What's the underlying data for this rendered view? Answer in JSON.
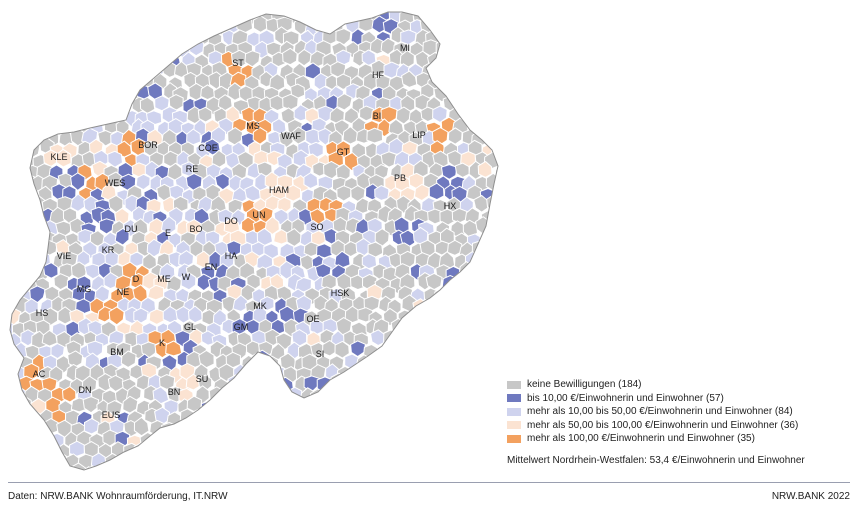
{
  "colors": {
    "none": "#c7c7c7",
    "low": "#6f79bf",
    "mid": "#cfd3ee",
    "high": "#fbe3d2",
    "top": "#f3a15f",
    "border": "#ffffff"
  },
  "legend": {
    "items": [
      {
        "label": "keine Bewilligungen (184)",
        "color_key": "none"
      },
      {
        "label": "bis 10,00 €/Einwohnerin und Einwohner (57)",
        "color_key": "low"
      },
      {
        "label": "mehr als 10,00 bis 50,00 €/Einwohnerin und Einwohner (84)",
        "color_key": "mid"
      },
      {
        "label": "mehr als 50,00 bis 100,00 €/Einwohnerin und Einwohner  (36)",
        "color_key": "high"
      },
      {
        "label": "mehr als 100,00 €/Einwohnerin und Einwohner (35)",
        "color_key": "top"
      }
    ]
  },
  "mean_text": "Mittelwert Nordrhein-Westfalen: 53,4 €/Einwohnerin und Einwohner",
  "footer": {
    "source": "Daten: NRW.BANK Wohnraumförderung, IT.NRW",
    "copyright": "NRW.BANK 2022"
  },
  "district_labels": [
    "MI",
    "HF",
    "ST",
    "BI",
    "MS",
    "LIP",
    "WAF",
    "GT",
    "KLE",
    "BOR",
    "COE",
    "PB",
    "RE",
    "WES",
    "HAM",
    "HX",
    "UN",
    "DU",
    "E",
    "BO",
    "DO",
    "SO",
    "KR",
    "VIE",
    "HA",
    "EN",
    "D",
    "ME",
    "W",
    "NE",
    "MG",
    "HSK",
    "MK",
    "HS",
    "OE",
    "GL",
    "GM",
    "K",
    "BM",
    "SI",
    "AC",
    "SU",
    "DN",
    "BN",
    "EUS"
  ]
}
